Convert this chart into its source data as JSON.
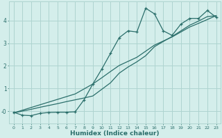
{
  "xlabel": "Humidex (Indice chaleur)",
  "bg_color": "#d4eeeb",
  "grid_color": "#aed4d0",
  "line_color": "#2a6e6a",
  "x_data": [
    0,
    1,
    2,
    3,
    4,
    5,
    6,
    7,
    8,
    9,
    10,
    11,
    12,
    13,
    14,
    15,
    16,
    17,
    18,
    19,
    20,
    21,
    22,
    23
  ],
  "y_main": [
    -0.05,
    -0.18,
    -0.2,
    -0.1,
    -0.06,
    -0.05,
    -0.05,
    -0.03,
    0.5,
    1.2,
    1.85,
    2.55,
    3.25,
    3.55,
    3.5,
    4.55,
    4.3,
    3.55,
    3.35,
    3.85,
    4.1,
    4.1,
    4.45,
    4.15
  ],
  "y_line1": [
    -0.08,
    0.0,
    0.08,
    0.17,
    0.25,
    0.33,
    0.42,
    0.5,
    0.58,
    0.67,
    0.96,
    1.25,
    1.68,
    1.95,
    2.18,
    2.45,
    2.85,
    3.08,
    3.3,
    3.55,
    3.8,
    3.98,
    4.18,
    4.22
  ],
  "y_line2": [
    -0.08,
    0.04,
    0.16,
    0.28,
    0.4,
    0.52,
    0.64,
    0.76,
    0.98,
    1.2,
    1.47,
    1.75,
    2.02,
    2.2,
    2.38,
    2.65,
    2.92,
    3.1,
    3.28,
    3.5,
    3.72,
    3.88,
    4.05,
    4.22
  ],
  "xlim": [
    -0.5,
    23.5
  ],
  "ylim": [
    -0.55,
    4.85
  ],
  "yticks": [
    0,
    1,
    2,
    3,
    4
  ],
  "ytick_labels": [
    "-0",
    "1",
    "2",
    "3",
    "4"
  ],
  "xticks": [
    0,
    1,
    2,
    3,
    4,
    5,
    6,
    7,
    8,
    9,
    10,
    11,
    12,
    13,
    14,
    15,
    16,
    17,
    18,
    19,
    20,
    21,
    22,
    23
  ]
}
